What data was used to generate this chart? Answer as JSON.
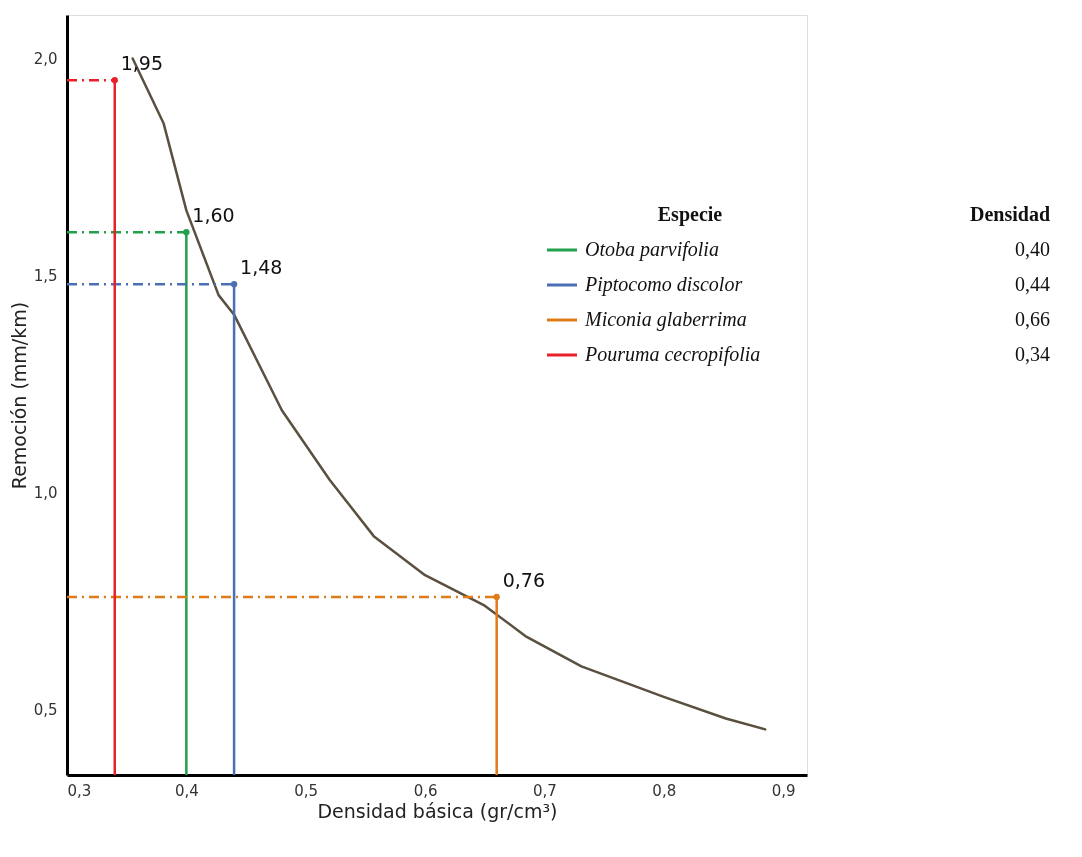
{
  "chart_data": {
    "type": "line",
    "xlabel": "Densidad básica (gr/cm³)",
    "ylabel": "Remoción (mm/km)",
    "xlim": [
      0.3,
      0.92
    ],
    "xticks": [
      {
        "value": 0.3,
        "label": "0,3"
      },
      {
        "value": 0.4,
        "label": "0,4"
      },
      {
        "value": 0.5,
        "label": "0,5"
      },
      {
        "value": 0.6,
        "label": "0,6"
      },
      {
        "value": 0.7,
        "label": "0,7"
      },
      {
        "value": 0.8,
        "label": "0,8"
      },
      {
        "value": 0.9,
        "label": "0,9"
      }
    ],
    "ylim": [
      0.35,
      2.1
    ],
    "yticks": [
      {
        "value": 0.5,
        "label": "0,5"
      },
      {
        "value": 1.0,
        "label": "1,0"
      },
      {
        "value": 1.5,
        "label": "1,5"
      },
      {
        "value": 2.0,
        "label": "2,0"
      }
    ],
    "grid": false,
    "legend": "top right",
    "legend_title": "Especie",
    "marker": "none",
    "annotations": [
      "Densidad",
      "0,40",
      "0,44",
      "0,66",
      "0,34"
    ],
    "series": [
      {
        "color": "#5a5040",
        "x": [
          0.355,
          0.381,
          0.4,
          0.427,
          0.44,
          0.48,
          0.52,
          0.557,
          0.6,
          0.65,
          0.684,
          0.731,
          0.8,
          0.852,
          0.885
        ],
        "values": [
          2.0,
          1.85,
          1.65,
          1.455,
          1.41,
          1.19,
          1.03,
          0.9,
          0.81,
          0.74,
          0.67,
          0.6,
          0.53,
          0.48,
          0.455
        ]
      },
      {
        "type": "lollipop",
        "name": "Otoba parvifolia",
        "color": "#22a04b",
        "x": [
          0.4
        ],
        "values": [
          1.6
        ],
        "value_labels": [
          "1,60"
        ]
      },
      {
        "type": "lollipop",
        "name": "Piptocomo discolor",
        "color": "#4a6fb5",
        "x": [
          0.44
        ],
        "values": [
          1.48
        ],
        "value_labels": [
          "1,48"
        ]
      },
      {
        "type": "lollipop",
        "name": "Miconia glaberrima",
        "color": "#e07b1a",
        "x": [
          0.66
        ],
        "values": [
          0.76
        ],
        "value_labels": [
          "0,76"
        ]
      },
      {
        "type": "lollipop",
        "name": "Pouruma cecropifolia",
        "color": "#e8202a",
        "x": [
          0.34
        ],
        "values": [
          1.95
        ],
        "value_labels": [
          "1,95"
        ]
      }
    ]
  }
}
